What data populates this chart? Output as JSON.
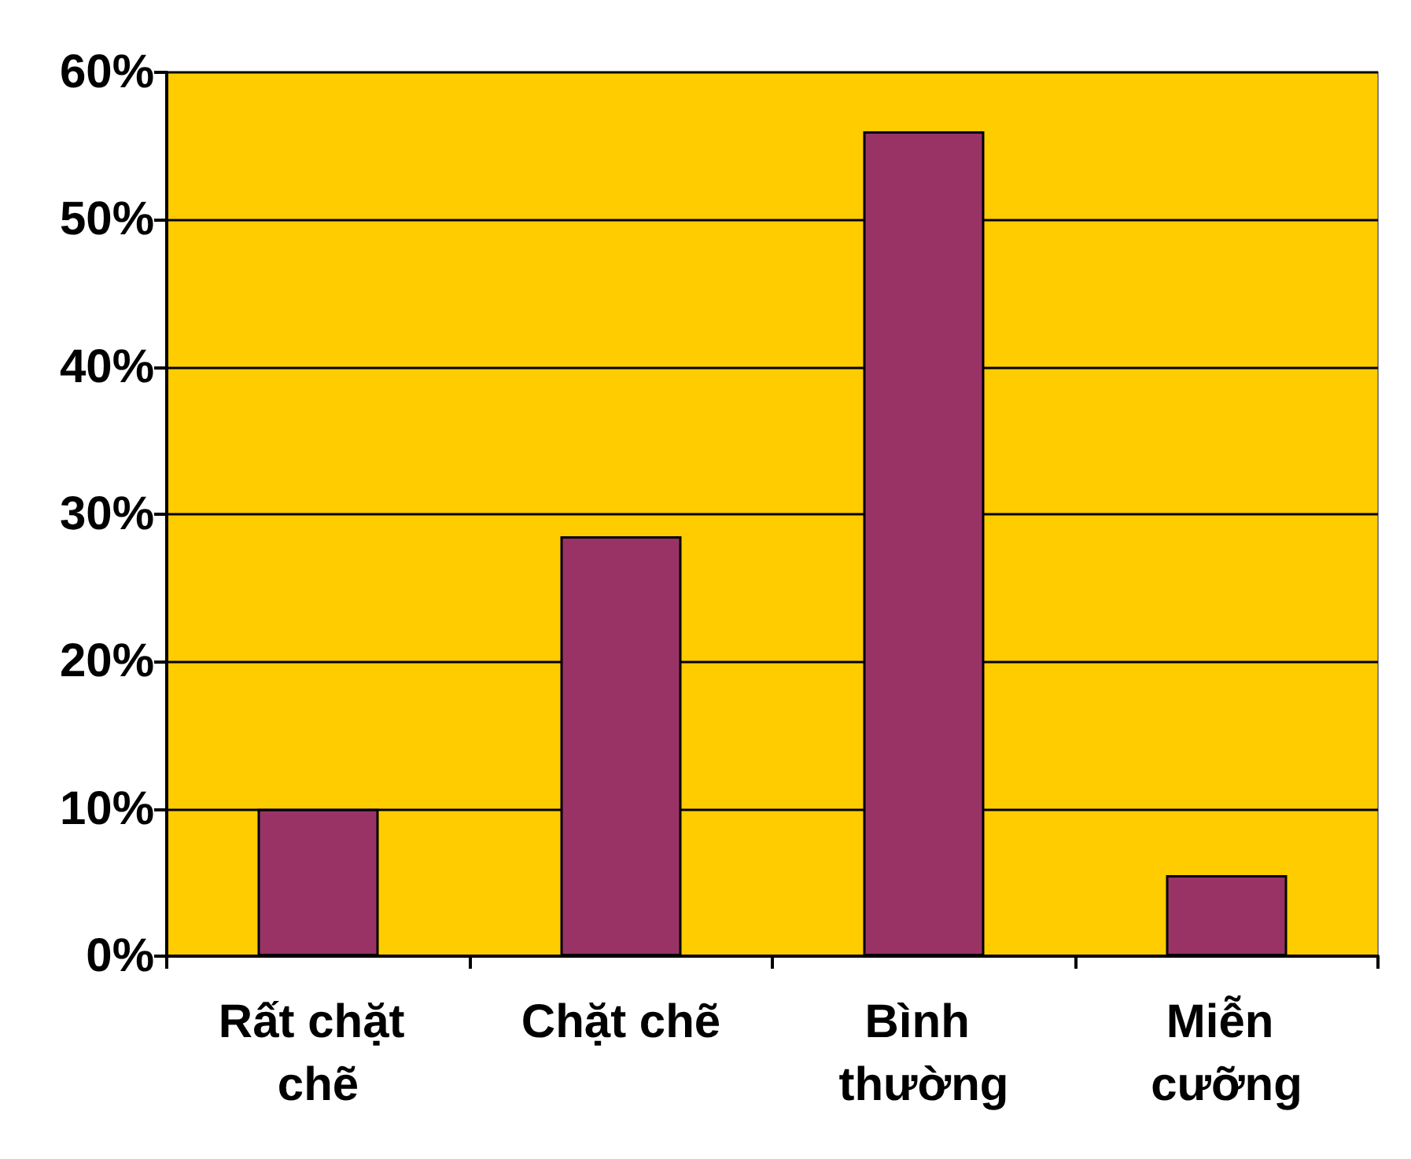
{
  "chart_data": {
    "type": "bar",
    "categories": [
      "Rất chặt chẽ",
      "Chặt chẽ",
      "Bình thường",
      "Miễn cưỡng"
    ],
    "values": [
      10,
      28.5,
      56,
      5.5
    ],
    "color": "#993366",
    "ylim": [
      0,
      60
    ],
    "yticks": [
      {
        "value": 0,
        "label": "0%"
      },
      {
        "value": 10,
        "label": "10%"
      },
      {
        "value": 20,
        "label": "20%"
      },
      {
        "value": 30,
        "label": "30%"
      },
      {
        "value": 40,
        "label": "40%"
      },
      {
        "value": 50,
        "label": "50%"
      },
      {
        "value": 60,
        "label": "60%"
      }
    ],
    "grid": "y"
  }
}
